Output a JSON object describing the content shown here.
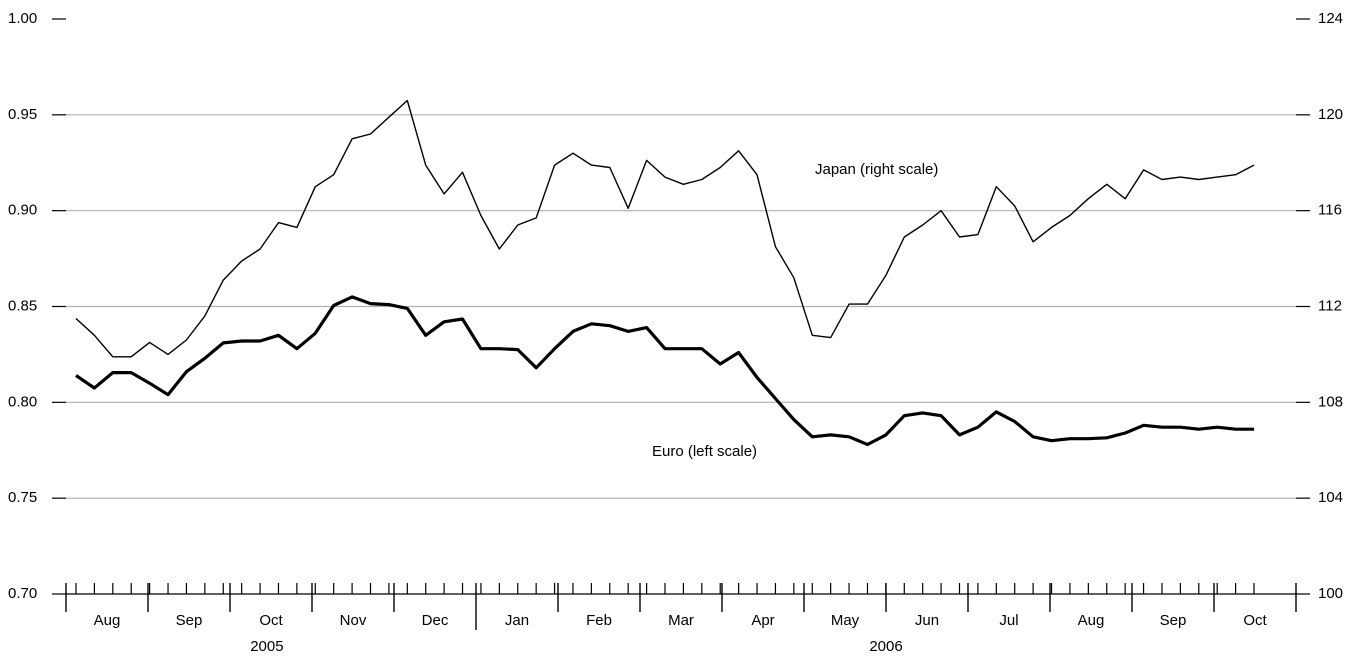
{
  "chart_data": {
    "type": "line",
    "x_month_labels": [
      "Aug",
      "Sep",
      "Oct",
      "Nov",
      "Dec",
      "Jan",
      "Feb",
      "Mar",
      "Apr",
      "May",
      "Jun",
      "Jul",
      "Aug",
      "Sep",
      "Oct"
    ],
    "x_year_labels": [
      "2005",
      "2006"
    ],
    "series": [
      {
        "name": "Euro (left scale)",
        "color": "#000000",
        "axis": "y",
        "values": [
          0.814,
          0.8075,
          0.8155,
          0.8155,
          0.81,
          0.804,
          0.816,
          0.823,
          0.831,
          0.832,
          0.832,
          0.835,
          0.828,
          0.836,
          0.8505,
          0.855,
          0.8515,
          0.851,
          0.849,
          0.835,
          0.842,
          0.8435,
          0.828,
          0.828,
          0.8275,
          0.818,
          0.828,
          0.837,
          0.841,
          0.84,
          0.837,
          0.839,
          0.828,
          0.828,
          0.828,
          0.82,
          0.826,
          0.813,
          0.802,
          0.791,
          0.782,
          0.783,
          0.782,
          0.778,
          0.783,
          0.793,
          0.7945,
          0.793,
          0.783,
          0.787,
          0.795,
          0.79,
          0.782,
          0.78,
          0.781,
          0.781,
          0.7815,
          0.784,
          0.788,
          0.787,
          0.787,
          0.786,
          0.787,
          0.786,
          0.786
        ]
      },
      {
        "name": "Japan (right scale)",
        "color": "#000000",
        "axis": "y2",
        "values": [
          111.5,
          110.8,
          109.9,
          109.9,
          110.5,
          110.0,
          110.6,
          111.6,
          113.1,
          113.9,
          114.4,
          115.5,
          115.3,
          117.0,
          117.5,
          119.0,
          119.2,
          119.9,
          120.6,
          117.9,
          116.7,
          117.6,
          115.8,
          114.4,
          115.4,
          115.7,
          117.9,
          118.4,
          117.9,
          117.8,
          116.1,
          118.1,
          117.4,
          117.1,
          117.3,
          117.8,
          118.5,
          117.5,
          114.5,
          113.2,
          110.8,
          110.7,
          112.1,
          112.1,
          113.3,
          114.9,
          115.4,
          116.0,
          114.9,
          115.0,
          117.0,
          116.2,
          114.7,
          115.3,
          115.8,
          116.5,
          117.1,
          116.5,
          117.7,
          117.3,
          117.4,
          117.3,
          117.4,
          117.5,
          117.9
        ]
      }
    ],
    "ylim": [
      0.7,
      1.0
    ],
    "yticks": [
      {
        "value": 0.7,
        "label": "0.70"
      },
      0.75,
      {
        "value": 0.8,
        "label": "0.80"
      },
      0.85,
      {
        "value": 0.9,
        "label": "0.90"
      },
      0.95,
      {
        "value": 1.0,
        "label": "1.00"
      }
    ],
    "y2lim": [
      100,
      124
    ],
    "y2ticks": [
      100,
      104,
      108,
      112,
      116,
      120,
      124
    ],
    "grid": true
  }
}
